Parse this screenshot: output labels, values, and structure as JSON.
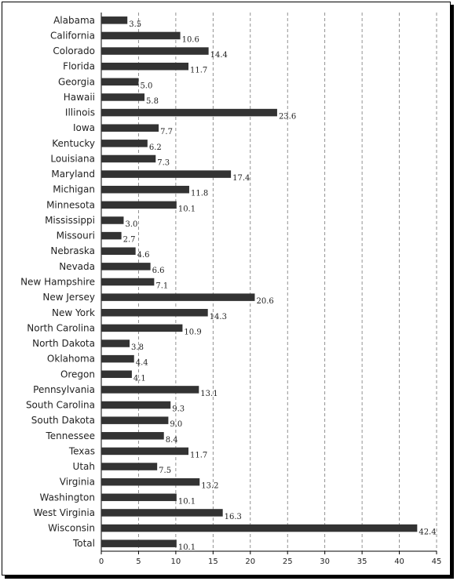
{
  "chart_data": {
    "type": "bar",
    "orientation": "horizontal",
    "categories": [
      "Alabama",
      "California",
      "Colorado",
      "Florida",
      "Georgia",
      "Hawaii",
      "Illinois",
      "Iowa",
      "Kentucky",
      "Louisiana",
      "Maryland",
      "Michigan",
      "Minnesota",
      "Mississippi",
      "Missouri",
      "Nebraska",
      "Nevada",
      "New Hampshire",
      "New Jersey",
      "New York",
      "North Carolina",
      "North Dakota",
      "Oklahoma",
      "Oregon",
      "Pennsylvania",
      "South Carolina",
      "South Dakota",
      "Tennessee",
      "Texas",
      "Utah",
      "Virginia",
      "Washington",
      "West Virginia",
      "Wisconsin",
      "Total"
    ],
    "values": [
      3.5,
      10.6,
      14.4,
      11.7,
      5.0,
      5.8,
      23.6,
      7.7,
      6.2,
      7.3,
      17.4,
      11.8,
      10.1,
      3.0,
      2.7,
      4.6,
      6.6,
      7.1,
      20.6,
      14.3,
      10.9,
      3.8,
      4.4,
      4.1,
      13.1,
      9.3,
      9.0,
      8.4,
      11.7,
      7.5,
      13.2,
      10.1,
      16.3,
      42.4,
      10.1
    ],
    "value_labels": [
      "3.5",
      "10.6",
      "14.4",
      "11.7",
      "5.0",
      "5.8",
      "23.6",
      "7.7",
      "6.2",
      "7.3",
      "17.4",
      "11.8",
      "10.1",
      "3.0",
      "2.7",
      "4.6",
      "6.6",
      "7.1",
      "20.6",
      "14.3",
      "10.9",
      "3.8",
      "4.4",
      "4.1",
      "13.1",
      "9.3",
      "9.0",
      "8.4",
      "11.7",
      "7.5",
      "13.2",
      "10.1",
      "16.3",
      "42.4",
      "10.1"
    ],
    "x_ticks": [
      "0",
      "5",
      "10",
      "15",
      "20",
      "25",
      "30",
      "35",
      "40",
      "45"
    ],
    "xlim": [
      0,
      45
    ],
    "grid": "vertical dashed",
    "bar_color": "#333333",
    "title": "",
    "xlabel": "",
    "ylabel": ""
  }
}
